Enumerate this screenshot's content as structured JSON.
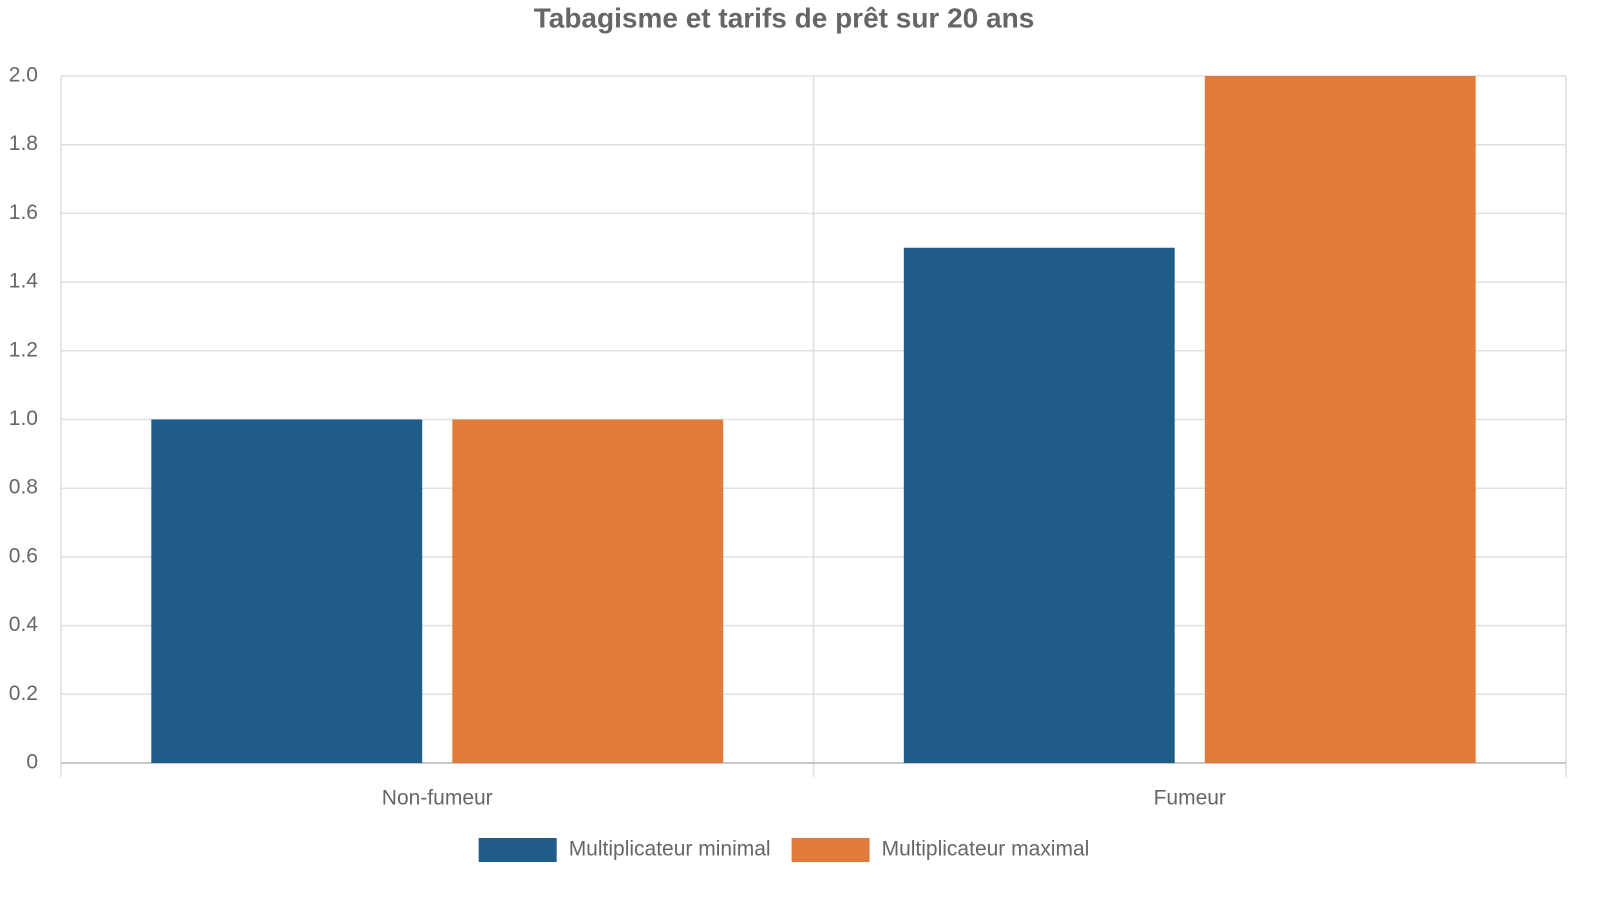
{
  "chart_data": {
    "type": "bar",
    "title": "Tabagisme et tarifs de prêt sur 20 ans",
    "categories": [
      "Non-fumeur",
      "Fumeur"
    ],
    "series": [
      {
        "name": "Multiplicateur minimal",
        "color": "#1f5c87",
        "values": [
          1,
          1.5
        ]
      },
      {
        "name": "Multiplicateur maximal",
        "color": "#e07b3b",
        "values": [
          1,
          2
        ]
      }
    ],
    "ylim": [
      0,
      2
    ],
    "yticks": [
      0,
      0.2,
      0.4,
      0.6,
      0.8,
      {
        "value": 1,
        "label": "1.0"
      },
      1.2,
      1.4,
      1.6,
      1.8,
      {
        "value": 2,
        "label": "2.0"
      }
    ],
    "grid": true,
    "legend": "bottom"
  }
}
